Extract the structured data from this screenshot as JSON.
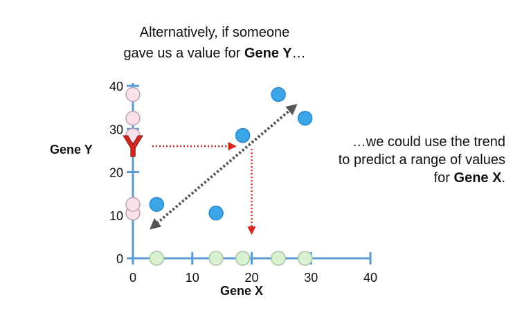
{
  "caption_top": {
    "line1": "Alternatively, if someone",
    "line2_prefix": "gave us a value for ",
    "line2_bold": "Gene Y",
    "line2_suffix": "…"
  },
  "caption_right": {
    "line1": "…we could use the trend",
    "line2": "to predict a range of values",
    "line3_prefix": "for ",
    "line3_bold": "Gene X",
    "line3_suffix": "."
  },
  "marker_letter": "Y",
  "chart_data": {
    "type": "scatter",
    "xlabel": "Gene X",
    "ylabel": "Gene Y",
    "xlim": [
      0,
      40
    ],
    "ylim": [
      0,
      40
    ],
    "x_ticks": [
      0,
      10,
      20,
      30,
      40
    ],
    "y_ticks": [
      0,
      10,
      20,
      30,
      40
    ],
    "points": [
      {
        "x": 4,
        "y": 12.5
      },
      {
        "x": 14,
        "y": 10.5
      },
      {
        "x": 18.5,
        "y": 28.5
      },
      {
        "x": 24.5,
        "y": 38
      },
      {
        "x": 29,
        "y": 32.5
      }
    ],
    "x_axis_projections": [
      4,
      14,
      18.5,
      24.5,
      29
    ],
    "y_axis_projections": [
      10.5,
      12.5,
      28.5,
      32.5,
      38
    ],
    "trend_arrow": {
      "from": [
        3.5,
        7.5
      ],
      "to": [
        27,
        35
      ]
    },
    "query_y": 26,
    "predicted_x": 20,
    "colors": {
      "point": "#3aa6e8",
      "point_stroke": "#2b86c5",
      "x_projection": "#d8f2d0",
      "y_projection": "#fbe0ea",
      "axis": "#5a9bd4",
      "trend": "#555555",
      "prediction_arrow": "#d9261c",
      "marker": "#d9261c"
    }
  }
}
